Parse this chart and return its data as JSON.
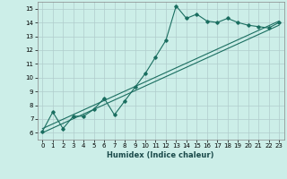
{
  "xlabel": "Humidex (Indice chaleur)",
  "ylabel": "",
  "background_color": "#cceee8",
  "grid_color": "#b0cccc",
  "line_color": "#1a6e60",
  "xlim": [
    -0.5,
    23.5
  ],
  "ylim": [
    5.5,
    15.5
  ],
  "xticks": [
    0,
    1,
    2,
    3,
    4,
    5,
    6,
    7,
    8,
    9,
    10,
    11,
    12,
    13,
    14,
    15,
    16,
    17,
    18,
    19,
    20,
    21,
    22,
    23
  ],
  "yticks": [
    6,
    7,
    8,
    9,
    10,
    11,
    12,
    13,
    14,
    15
  ],
  "line1_x": [
    0,
    1,
    2,
    3,
    4,
    5,
    6,
    7,
    8,
    9,
    10,
    11,
    12,
    13,
    14,
    15,
    16,
    17,
    18,
    19,
    20,
    21,
    22,
    23
  ],
  "line1_y": [
    6.1,
    7.5,
    6.3,
    7.2,
    7.2,
    7.7,
    8.5,
    7.3,
    8.3,
    9.3,
    10.3,
    11.5,
    12.7,
    15.2,
    14.3,
    14.6,
    14.1,
    14.0,
    14.3,
    14.0,
    13.8,
    13.7,
    13.6,
    14.0
  ],
  "line2_x": [
    0,
    23
  ],
  "line2_y": [
    6.3,
    14.1
  ],
  "line3_x": [
    0,
    23
  ],
  "line3_y": [
    6.0,
    13.8
  ]
}
